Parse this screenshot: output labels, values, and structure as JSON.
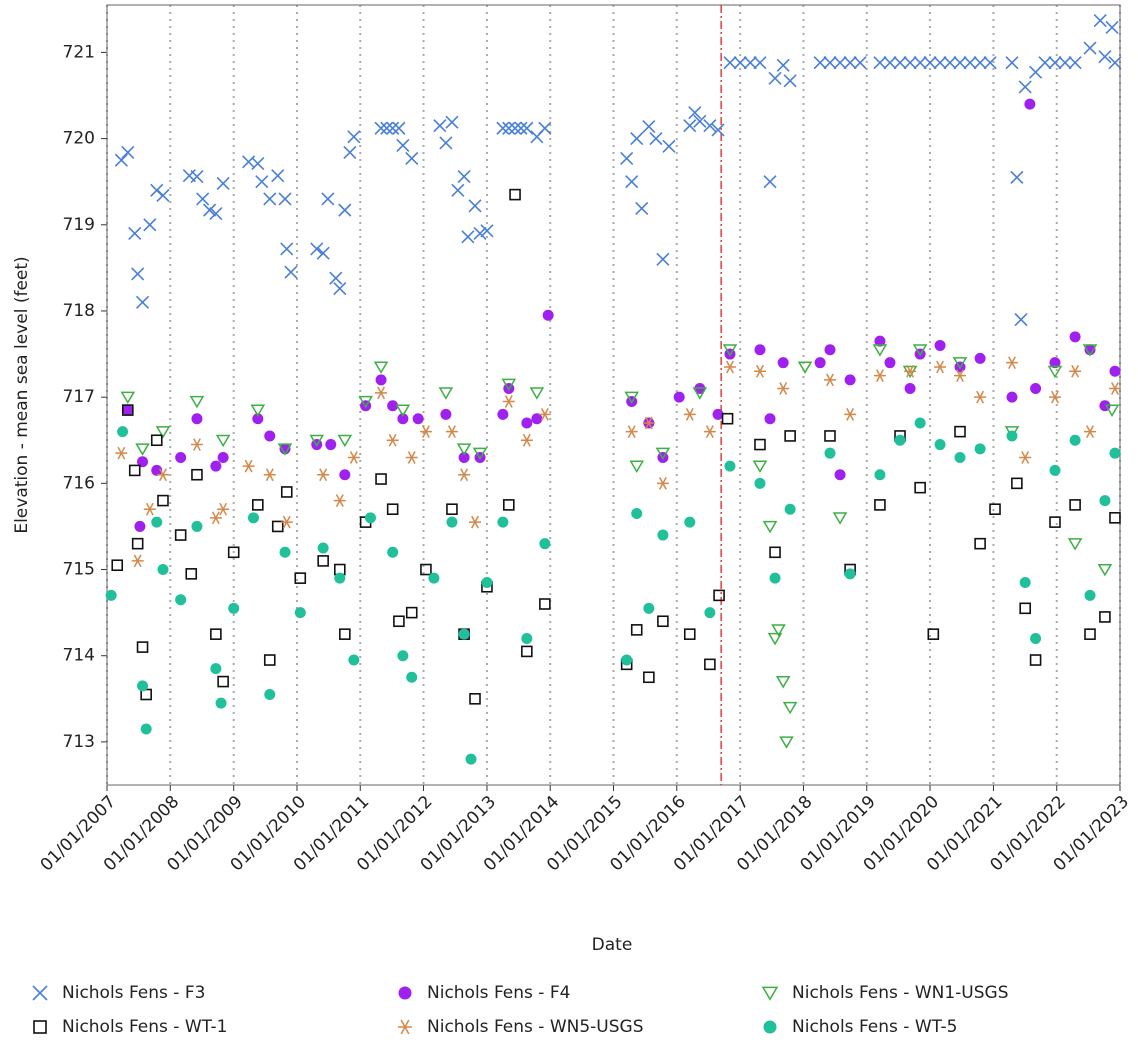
{
  "chart_data": {
    "type": "scatter",
    "x_label": "Date",
    "y_label": "Elevation - mean sea level (feet)",
    "xlim": [
      "2007-01-01",
      "2023-01-01"
    ],
    "ylim": [
      712.5,
      721.55
    ],
    "yticks": [
      713,
      714,
      715,
      716,
      717,
      718,
      719,
      720,
      721
    ],
    "xticks": [
      {
        "value": "2007-01-01",
        "label": "01/01/2007"
      },
      {
        "value": "2008-01-01",
        "label": "01/01/2008"
      },
      {
        "value": "2009-01-01",
        "label": "01/01/2009"
      },
      {
        "value": "2010-01-01",
        "label": "01/01/2010"
      },
      {
        "value": "2011-01-01",
        "label": "01/01/2011"
      },
      {
        "value": "2012-01-01",
        "label": "01/01/2012"
      },
      {
        "value": "2013-01-01",
        "label": "01/01/2013"
      },
      {
        "value": "2014-01-01",
        "label": "01/01/2014"
      },
      {
        "value": "2015-01-01",
        "label": "01/01/2015"
      },
      {
        "value": "2016-01-01",
        "label": "01/01/2016"
      },
      {
        "value": "2017-01-01",
        "label": "01/01/2017"
      },
      {
        "value": "2018-01-01",
        "label": "01/01/2018"
      },
      {
        "value": "2019-01-01",
        "label": "01/01/2019"
      },
      {
        "value": "2020-01-01",
        "label": "01/01/2020"
      },
      {
        "value": "2021-01-01",
        "label": "01/01/2021"
      },
      {
        "value": "2022-01-01",
        "label": "01/01/2022"
      },
      {
        "value": "2023-01-01",
        "label": "01/01/2023"
      }
    ],
    "grid": true,
    "reference_line": {
      "x": "2016-09-13",
      "color": "#e02020"
    },
    "series": [
      {
        "name": "Nichols Fens - F3",
        "color": "#4a7fd8",
        "marker": "x",
        "x": [
          "2007-03-25",
          "2007-05-01",
          "2007-06-10",
          "2007-06-27",
          "2007-07-25",
          "2007-09-05",
          "2007-10-15",
          "2007-11-20",
          "2008-04-20",
          "2008-06-03",
          "2008-07-06",
          "2008-08-15",
          "2008-09-20",
          "2008-11-01",
          "2009-03-28",
          "2009-05-20",
          "2009-06-12",
          "2009-07-28",
          "2009-09-12",
          "2009-10-24",
          "2009-11-03",
          "2009-11-27",
          "2010-04-25",
          "2010-06-01",
          "2010-06-28",
          "2010-08-13",
          "2010-09-05",
          "2010-10-04",
          "2010-11-02",
          "2010-11-25",
          "2011-05-01",
          "2011-06-03",
          "2011-07-07",
          "2011-08-12",
          "2011-09-04",
          "2011-10-25",
          "2012-04-04",
          "2012-05-09",
          "2012-06-13",
          "2012-07-17",
          "2012-08-22",
          "2012-09-13",
          "2012-10-24",
          "2012-11-22",
          "2013-01-01",
          "2013-04-03",
          "2013-05-07",
          "2013-06-12",
          "2013-07-16",
          "2013-08-19",
          "2013-10-16",
          "2013-12-01",
          "2015-03-18",
          "2015-04-16",
          "2015-05-15",
          "2015-06-13",
          "2015-07-24",
          "2015-09-03",
          "2015-10-13",
          "2015-11-17",
          "2016-03-16",
          "2016-04-14",
          "2016-05-13",
          "2016-07-10",
          "2016-08-26",
          "2016-11-03",
          "2017-01-01",
          "2017-02-28",
          "2017-04-25",
          "2017-06-22",
          "2017-07-21",
          "2017-09-06",
          "2017-10-16",
          "2018-04-07",
          "2018-06-03",
          "2018-07-31",
          "2018-09-27",
          "2018-11-24",
          "2019-03-18",
          "2019-05-15",
          "2019-07-12",
          "2019-09-08",
          "2019-11-05",
          "2020-01-01",
          "2020-02-28",
          "2020-04-25",
          "2020-06-22",
          "2020-08-19",
          "2020-10-16",
          "2020-12-13",
          "2021-04-18",
          "2021-05-16",
          "2021-06-09",
          "2021-07-03",
          "2021-09-01",
          "2021-10-25",
          "2021-12-22",
          "2022-02-18",
          "2022-04-17",
          "2022-07-12",
          "2022-09-09",
          "2022-10-06",
          "2022-11-16",
          "2022-12-03"
        ],
        "values": [
          719.75,
          719.84,
          718.9,
          718.43,
          718.1,
          719.0,
          719.4,
          719.34,
          719.57,
          719.56,
          719.3,
          719.17,
          719.13,
          719.48,
          719.73,
          719.71,
          719.5,
          719.3,
          719.57,
          719.3,
          718.72,
          718.45,
          718.72,
          718.67,
          719.3,
          718.38,
          718.26,
          719.17,
          719.84,
          720.02,
          720.12,
          720.12,
          720.12,
          720.12,
          719.92,
          719.77,
          720.15,
          719.95,
          720.19,
          719.4,
          719.56,
          718.86,
          719.22,
          718.9,
          718.93,
          720.12,
          720.12,
          720.12,
          720.12,
          720.12,
          720.02,
          720.12,
          719.77,
          719.5,
          720.0,
          719.19,
          720.14,
          720.0,
          718.6,
          719.91,
          720.15,
          720.3,
          720.2,
          720.15,
          720.1,
          720.88,
          720.88,
          720.88,
          720.88,
          719.5,
          720.7,
          720.85,
          720.67,
          720.88,
          720.88,
          720.88,
          720.88,
          720.88,
          720.88,
          720.88,
          720.88,
          720.88,
          720.88,
          720.88,
          720.88,
          720.88,
          720.88,
          720.88,
          720.88,
          720.88,
          720.88,
          719.55,
          717.9,
          720.6,
          720.77,
          720.88,
          720.88,
          720.88,
          720.88,
          721.05,
          721.37,
          720.95,
          721.29,
          720.88
        ]
      },
      {
        "name": "Nichols Fens - F4",
        "color": "#a020f0",
        "marker": "circle",
        "x": [
          "2007-05-01",
          "2007-07-10",
          "2007-07-25",
          "2007-10-15",
          "2008-03-01",
          "2008-06-03",
          "2008-09-20",
          "2008-11-01",
          "2009-05-20",
          "2009-07-28",
          "2009-10-24",
          "2010-04-25",
          "2010-07-15",
          "2010-10-04",
          "2011-02-01",
          "2011-05-01",
          "2011-07-07",
          "2011-09-04",
          "2011-12-01",
          "2012-05-09",
          "2012-08-22",
          "2012-11-22",
          "2013-04-03",
          "2013-05-07",
          "2013-08-19",
          "2013-10-16",
          "2013-12-20",
          "2015-04-16",
          "2015-07-24",
          "2015-10-13",
          "2016-01-15",
          "2016-05-13",
          "2016-08-26",
          "2016-11-03",
          "2017-04-25",
          "2017-06-22",
          "2017-09-06",
          "2018-04-07",
          "2018-06-03",
          "2018-07-31",
          "2018-09-27",
          "2019-03-18",
          "2019-05-15",
          "2019-09-08",
          "2019-11-05",
          "2020-02-28",
          "2020-06-22",
          "2020-10-16",
          "2021-04-18",
          "2021-07-30",
          "2021-09-01",
          "2021-12-22",
          "2022-04-17",
          "2022-07-12",
          "2022-10-06",
          "2022-12-03"
        ],
        "values": [
          716.85,
          715.5,
          716.25,
          716.15,
          716.3,
          716.75,
          716.2,
          716.3,
          716.75,
          716.55,
          716.4,
          716.45,
          716.45,
          716.1,
          716.9,
          717.2,
          716.9,
          716.75,
          716.75,
          716.8,
          716.3,
          716.3,
          716.8,
          717.1,
          716.7,
          716.75,
          717.95,
          716.95,
          716.7,
          716.3,
          717.0,
          717.1,
          716.8,
          717.5,
          717.55,
          716.75,
          717.4,
          717.4,
          717.55,
          716.1,
          717.2,
          717.65,
          717.4,
          717.1,
          717.5,
          717.6,
          717.35,
          717.45,
          717.0,
          720.4,
          717.1,
          717.4,
          717.7,
          717.55,
          716.9,
          717.3
        ]
      },
      {
        "name": "Nichols Fens - WN1-USGS",
        "color": "#3cb043",
        "marker": "triangle",
        "x": [
          "2007-05-01",
          "2007-07-25",
          "2007-11-20",
          "2008-06-03",
          "2008-11-01",
          "2009-05-20",
          "2009-10-24",
          "2010-04-25",
          "2010-10-04",
          "2011-02-01",
          "2011-05-01",
          "2011-09-04",
          "2012-05-09",
          "2012-08-22",
          "2012-11-22",
          "2013-05-07",
          "2013-10-16",
          "2015-04-16",
          "2015-05-15",
          "2015-10-13",
          "2016-05-13",
          "2016-11-03",
          "2017-04-25",
          "2017-06-22",
          "2017-07-21",
          "2017-08-10",
          "2017-09-06",
          "2017-09-25",
          "2017-10-16",
          "2018-01-10",
          "2018-07-31",
          "2019-03-18",
          "2019-09-08",
          "2019-11-05",
          "2020-06-22",
          "2021-04-18",
          "2021-12-22",
          "2022-04-17",
          "2022-07-12",
          "2022-10-06",
          "2022-11-16"
        ],
        "values": [
          717.0,
          716.4,
          716.6,
          716.95,
          716.5,
          716.85,
          716.4,
          716.5,
          716.5,
          716.95,
          717.35,
          716.85,
          717.05,
          716.4,
          716.35,
          717.15,
          717.05,
          717.0,
          716.2,
          716.35,
          717.05,
          717.55,
          716.2,
          715.5,
          714.2,
          714.3,
          713.7,
          713.0,
          713.4,
          717.35,
          715.6,
          717.55,
          717.3,
          717.55,
          717.4,
          716.6,
          717.3,
          715.3,
          717.55,
          715.0,
          716.85
        ]
      },
      {
        "name": "Nichols Fens - WT-1",
        "color": "#111111",
        "marker": "square",
        "x": [
          "2007-03-01",
          "2007-05-01",
          "2007-06-10",
          "2007-06-27",
          "2007-07-25",
          "2007-08-15",
          "2007-10-15",
          "2007-11-20",
          "2008-03-01",
          "2008-05-01",
          "2008-06-03",
          "2008-09-20",
          "2008-11-01",
          "2009-01-01",
          "2009-05-20",
          "2009-07-28",
          "2009-09-12",
          "2009-11-03",
          "2010-01-20",
          "2010-06-01",
          "2010-09-05",
          "2010-10-04",
          "2011-02-01",
          "2011-05-01",
          "2011-07-07",
          "2011-08-12",
          "2011-10-25",
          "2012-01-15",
          "2012-06-13",
          "2012-08-22",
          "2012-10-24",
          "2013-01-01",
          "2013-05-07",
          "2013-06-12",
          "2013-08-19",
          "2013-12-01",
          "2015-03-18",
          "2015-05-15",
          "2015-07-24",
          "2015-10-13",
          "2016-03-16",
          "2016-07-10",
          "2016-09-01",
          "2016-10-20",
          "2017-04-25",
          "2017-07-21",
          "2017-10-16",
          "2018-06-03",
          "2018-09-27",
          "2019-03-18",
          "2019-07-12",
          "2019-11-05",
          "2020-01-20",
          "2020-06-22",
          "2020-10-16",
          "2021-01-10",
          "2021-05-16",
          "2021-07-03",
          "2021-09-01",
          "2021-12-22",
          "2022-04-17",
          "2022-07-12",
          "2022-10-06",
          "2022-12-03"
        ],
        "values": [
          715.05,
          716.85,
          716.15,
          715.3,
          714.1,
          713.55,
          716.5,
          715.8,
          715.4,
          714.95,
          716.1,
          714.25,
          713.7,
          715.2,
          715.75,
          713.95,
          715.5,
          715.9,
          714.9,
          715.1,
          715.0,
          714.25,
          715.55,
          716.05,
          715.7,
          714.4,
          714.5,
          715.0,
          715.7,
          714.25,
          713.5,
          714.8,
          715.75,
          719.35,
          714.05,
          714.6,
          713.9,
          714.3,
          713.75,
          714.4,
          714.25,
          713.9,
          714.7,
          716.75,
          716.45,
          715.2,
          716.55,
          716.55,
          715.0,
          715.75,
          716.55,
          715.95,
          714.25,
          716.6,
          715.3,
          715.7,
          716.0,
          714.55,
          713.95,
          715.55,
          715.75,
          714.25,
          714.45,
          715.6
        ]
      },
      {
        "name": "Nichols Fens - WN5-USGS",
        "color": "#d4884a",
        "marker": "asterisk",
        "x": [
          "2007-03-25",
          "2007-06-27",
          "2007-09-05",
          "2007-11-20",
          "2008-06-03",
          "2008-09-20",
          "2008-11-01",
          "2009-03-28",
          "2009-07-28",
          "2009-11-03",
          "2010-06-01",
          "2010-09-05",
          "2010-11-25",
          "2011-05-01",
          "2011-07-07",
          "2011-10-25",
          "2012-01-15",
          "2012-06-13",
          "2012-08-22",
          "2012-10-24",
          "2013-05-07",
          "2013-08-19",
          "2013-12-01",
          "2015-04-16",
          "2015-07-24",
          "2015-10-13",
          "2016-03-16",
          "2016-07-10",
          "2016-11-03",
          "2017-04-25",
          "2017-09-06",
          "2018-06-03",
          "2018-09-27",
          "2019-03-18",
          "2019-09-08",
          "2020-02-28",
          "2020-06-22",
          "2020-10-16",
          "2021-04-18",
          "2021-07-03",
          "2021-12-22",
          "2022-04-17",
          "2022-07-12",
          "2022-12-03"
        ],
        "values": [
          716.35,
          715.1,
          715.7,
          716.1,
          716.45,
          715.6,
          715.7,
          716.2,
          716.1,
          715.55,
          716.1,
          715.8,
          716.3,
          717.05,
          716.5,
          716.3,
          716.6,
          716.6,
          716.1,
          715.55,
          716.95,
          716.5,
          716.8,
          716.6,
          716.7,
          716.0,
          716.8,
          716.6,
          717.35,
          717.3,
          717.1,
          717.2,
          716.8,
          717.25,
          717.3,
          717.35,
          717.25,
          717.0,
          717.4,
          716.3,
          717.0,
          717.3,
          716.6,
          717.1
        ]
      },
      {
        "name": "Nichols Fens - WT-5",
        "color": "#20c09a",
        "marker": "circle",
        "x": [
          "2007-01-25",
          "2007-04-01",
          "2007-07-25",
          "2007-08-15",
          "2007-10-15",
          "2007-11-20",
          "2008-03-01",
          "2008-06-03",
          "2008-09-20",
          "2008-10-20",
          "2009-01-01",
          "2009-04-25",
          "2009-07-28",
          "2009-10-24",
          "2010-01-20",
          "2010-06-01",
          "2010-09-05",
          "2010-11-25",
          "2011-03-01",
          "2011-07-07",
          "2011-09-04",
          "2011-10-25",
          "2012-03-01",
          "2012-06-13",
          "2012-08-22",
          "2012-10-01",
          "2013-01-01",
          "2013-04-03",
          "2013-08-19",
          "2013-12-01",
          "2015-03-18",
          "2015-05-15",
          "2015-07-24",
          "2015-10-13",
          "2016-03-16",
          "2016-07-10",
          "2016-11-03",
          "2017-04-25",
          "2017-07-21",
          "2017-10-16",
          "2018-06-03",
          "2018-09-27",
          "2019-03-18",
          "2019-07-12",
          "2019-11-05",
          "2020-02-28",
          "2020-06-22",
          "2020-10-16",
          "2021-04-18",
          "2021-07-03",
          "2021-09-01",
          "2021-12-22",
          "2022-04-17",
          "2022-07-12",
          "2022-10-06",
          "2022-12-03"
        ],
        "values": [
          714.7,
          716.6,
          713.65,
          713.15,
          715.55,
          715.0,
          714.65,
          715.5,
          713.85,
          713.45,
          714.55,
          715.6,
          713.55,
          715.2,
          714.5,
          715.25,
          714.9,
          713.95,
          715.6,
          715.2,
          714.0,
          713.75,
          714.9,
          715.55,
          714.25,
          712.8,
          714.85,
          715.55,
          714.2,
          715.3,
          713.95,
          715.65,
          714.55,
          715.4,
          715.55,
          714.5,
          716.2,
          716.0,
          714.9,
          715.7,
          716.35,
          714.95,
          716.1,
          716.5,
          716.7,
          716.45,
          716.3,
          716.4,
          716.55,
          714.85,
          714.2,
          716.15,
          716.5,
          714.7,
          715.8,
          716.35
        ]
      }
    ]
  }
}
